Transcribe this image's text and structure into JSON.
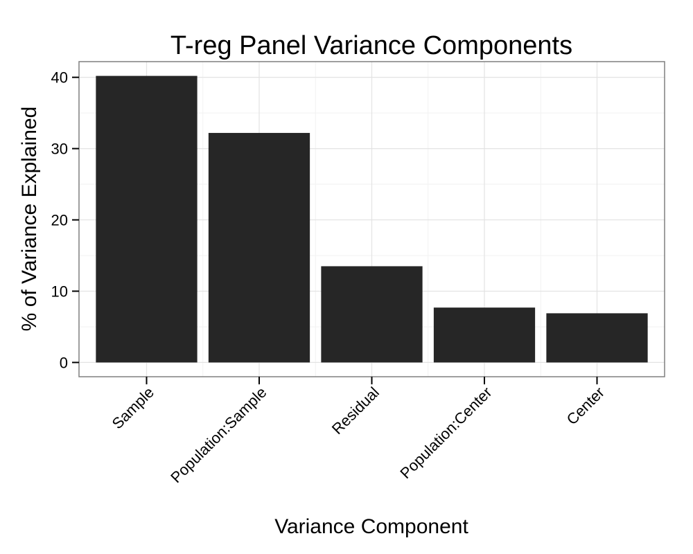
{
  "chart_data": {
    "type": "bar",
    "title": "T-reg Panel Variance Components",
    "xlabel": "Variance Component",
    "ylabel": "% of Variance Explained",
    "categories": [
      "Sample",
      "Population:Sample",
      "Residual",
      "Population:Center",
      "Center"
    ],
    "values": [
      40.2,
      32.2,
      13.5,
      7.7,
      6.9
    ],
    "ylim": [
      -2.0,
      42.2
    ],
    "yticks": [
      0,
      10,
      20,
      30,
      40
    ],
    "grid": true,
    "legend": "none",
    "colors": {
      "bar": "#262626",
      "panel_border": "#7f7f7f",
      "grid_major": "#e3e3e3",
      "grid_minor": "#f2f2f2",
      "background": "#ffffff"
    }
  }
}
